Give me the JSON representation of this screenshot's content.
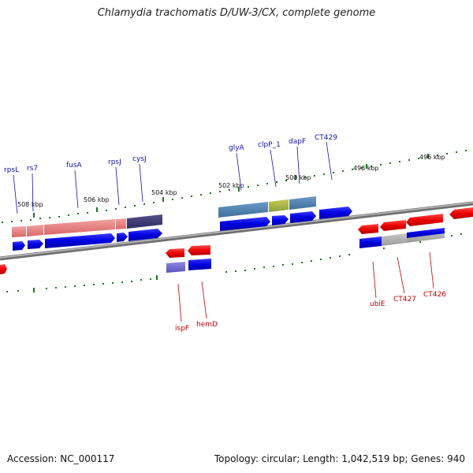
{
  "title": "Chlamydia trachomatis D/UW-3/CX, complete genome",
  "footer": {
    "accession": "Accession: NC_000117",
    "stats": "Topology: circular; Length: 1,042,519 bp; Genes: 940"
  },
  "colors": {
    "forward_label": "#1010b0",
    "reverse_label": "#c00000",
    "tick": "#1a7a1a",
    "backbone": "#808080"
  },
  "scale_labels": [
    "508 kbp",
    "506 kbp",
    "504 kbp",
    "502 kbp",
    "500 kbp",
    "498 kbp",
    "496 kbp"
  ],
  "forward_genes": [
    "rpsL",
    "rs7",
    "fusA",
    "rpsJ",
    "cysJ",
    "glyA",
    "clpP_1",
    "dapF",
    "CT429"
  ],
  "reverse_genes": [
    "ispF",
    "hemD",
    "ubiE",
    "CT427",
    "CT426"
  ]
}
